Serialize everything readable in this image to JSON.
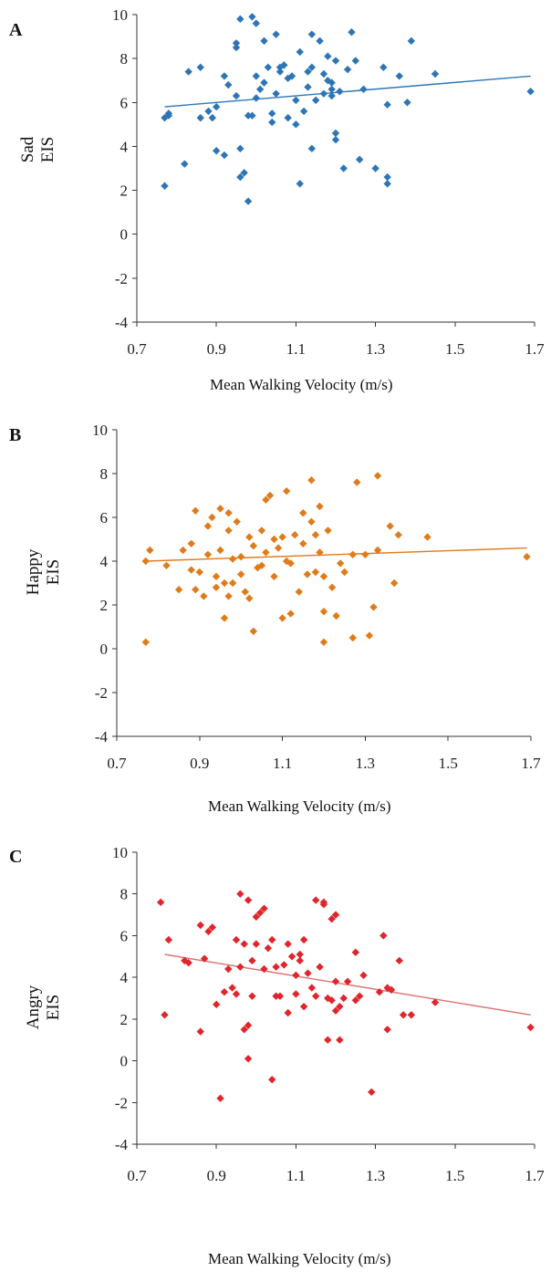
{
  "chart_data": [
    {
      "panel_label": "A",
      "type": "scatter",
      "ylabel": [
        "Sad",
        "EIS"
      ],
      "xlabel": "Mean Walking Velocity (m/s)",
      "xlim": [
        0.7,
        1.7
      ],
      "ylim": [
        -4,
        10
      ],
      "xticks": [
        "0.7",
        "0.9",
        "1.1",
        "1.3",
        "1.5",
        "1.7"
      ],
      "yticks": [
        "10",
        "8",
        "6",
        "4",
        "2",
        "0",
        "-2",
        "-4"
      ],
      "marker_color": "#2e75b6",
      "trend_color": "#2e75b6",
      "trend": {
        "x": [
          0.77,
          1.69
        ],
        "y": [
          5.8,
          7.2
        ]
      },
      "points": [
        [
          0.77,
          2.2
        ],
        [
          0.77,
          5.3
        ],
        [
          0.78,
          5.5
        ],
        [
          0.78,
          5.4
        ],
        [
          0.82,
          3.2
        ],
        [
          0.83,
          7.4
        ],
        [
          0.86,
          7.6
        ],
        [
          0.86,
          5.3
        ],
        [
          0.88,
          5.6
        ],
        [
          0.89,
          5.3
        ],
        [
          0.9,
          3.8
        ],
        [
          0.9,
          5.8
        ],
        [
          0.92,
          3.6
        ],
        [
          0.92,
          7.2
        ],
        [
          0.93,
          6.8
        ],
        [
          0.95,
          8.7
        ],
        [
          0.95,
          8.5
        ],
        [
          0.95,
          6.3
        ],
        [
          0.96,
          9.8
        ],
        [
          0.96,
          3.9
        ],
        [
          0.96,
          2.6
        ],
        [
          0.97,
          2.8
        ],
        [
          0.98,
          1.5
        ],
        [
          0.98,
          5.4
        ],
        [
          0.99,
          9.9
        ],
        [
          0.99,
          5.4
        ],
        [
          1.0,
          6.2
        ],
        [
          1.0,
          9.6
        ],
        [
          1.0,
          7.2
        ],
        [
          1.01,
          6.6
        ],
        [
          1.02,
          6.9
        ],
        [
          1.02,
          8.8
        ],
        [
          1.03,
          7.6
        ],
        [
          1.04,
          5.5
        ],
        [
          1.04,
          5.1
        ],
        [
          1.05,
          6.4
        ],
        [
          1.05,
          9.1
        ],
        [
          1.06,
          7.6
        ],
        [
          1.06,
          7.4
        ],
        [
          1.07,
          7.7
        ],
        [
          1.08,
          7.1
        ],
        [
          1.08,
          5.3
        ],
        [
          1.09,
          7.2
        ],
        [
          1.1,
          5.0
        ],
        [
          1.1,
          6.1
        ],
        [
          1.11,
          8.3
        ],
        [
          1.11,
          2.3
        ],
        [
          1.12,
          5.6
        ],
        [
          1.13,
          7.4
        ],
        [
          1.13,
          6.7
        ],
        [
          1.14,
          7.6
        ],
        [
          1.14,
          3.9
        ],
        [
          1.14,
          9.1
        ],
        [
          1.15,
          6.1
        ],
        [
          1.16,
          8.8
        ],
        [
          1.17,
          7.3
        ],
        [
          1.17,
          6.4
        ],
        [
          1.18,
          7.0
        ],
        [
          1.18,
          8.1
        ],
        [
          1.19,
          6.6
        ],
        [
          1.19,
          6.3
        ],
        [
          1.19,
          6.9
        ],
        [
          1.2,
          4.6
        ],
        [
          1.2,
          4.3
        ],
        [
          1.2,
          7.9
        ],
        [
          1.21,
          6.5
        ],
        [
          1.22,
          3.0
        ],
        [
          1.23,
          7.5
        ],
        [
          1.24,
          9.2
        ],
        [
          1.25,
          7.9
        ],
        [
          1.26,
          3.4
        ],
        [
          1.27,
          6.6
        ],
        [
          1.3,
          3.0
        ],
        [
          1.32,
          7.6
        ],
        [
          1.33,
          2.6
        ],
        [
          1.33,
          2.3
        ],
        [
          1.33,
          5.9
        ],
        [
          1.36,
          7.2
        ],
        [
          1.38,
          6.0
        ],
        [
          1.39,
          8.8
        ],
        [
          1.45,
          7.3
        ],
        [
          1.69,
          6.5
        ]
      ]
    },
    {
      "panel_label": "B",
      "type": "scatter",
      "ylabel": [
        "Happy",
        "EIS"
      ],
      "xlabel": "Mean Walking Velocity (m/s)",
      "xlim": [
        0.7,
        1.7
      ],
      "ylim": [
        -4,
        10
      ],
      "xticks": [
        "0.7",
        "0.9",
        "1.1",
        "1.3",
        "1.5",
        "1.7"
      ],
      "yticks": [
        "10",
        "8",
        "6",
        "4",
        "2",
        "0",
        "-2",
        "-4"
      ],
      "marker_color": "#e07b1a",
      "trend_color": "#e07b1a",
      "trend": {
        "x": [
          0.77,
          1.69
        ],
        "y": [
          4.0,
          4.6
        ]
      },
      "points": [
        [
          0.77,
          0.3
        ],
        [
          0.77,
          4.0
        ],
        [
          0.78,
          4.5
        ],
        [
          0.82,
          3.8
        ],
        [
          0.85,
          2.7
        ],
        [
          0.86,
          4.5
        ],
        [
          0.88,
          3.6
        ],
        [
          0.88,
          4.8
        ],
        [
          0.89,
          6.3
        ],
        [
          0.89,
          2.7
        ],
        [
          0.9,
          3.5
        ],
        [
          0.91,
          2.4
        ],
        [
          0.92,
          4.3
        ],
        [
          0.92,
          5.6
        ],
        [
          0.93,
          6.0
        ],
        [
          0.94,
          3.3
        ],
        [
          0.94,
          2.8
        ],
        [
          0.95,
          6.4
        ],
        [
          0.95,
          4.5
        ],
        [
          0.96,
          1.4
        ],
        [
          0.96,
          3.0
        ],
        [
          0.97,
          6.2
        ],
        [
          0.97,
          5.4
        ],
        [
          0.97,
          2.4
        ],
        [
          0.98,
          4.1
        ],
        [
          0.98,
          3.0
        ],
        [
          0.99,
          5.8
        ],
        [
          1.0,
          4.2
        ],
        [
          1.0,
          3.4
        ],
        [
          1.01,
          2.6
        ],
        [
          1.02,
          5.1
        ],
        [
          1.02,
          2.3
        ],
        [
          1.03,
          0.8
        ],
        [
          1.03,
          4.7
        ],
        [
          1.04,
          3.7
        ],
        [
          1.05,
          5.4
        ],
        [
          1.05,
          3.8
        ],
        [
          1.06,
          6.8
        ],
        [
          1.06,
          4.4
        ],
        [
          1.07,
          7.0
        ],
        [
          1.08,
          5.0
        ],
        [
          1.08,
          3.3
        ],
        [
          1.09,
          4.6
        ],
        [
          1.1,
          1.4
        ],
        [
          1.1,
          5.1
        ],
        [
          1.11,
          7.2
        ],
        [
          1.11,
          4.0
        ],
        [
          1.12,
          1.6
        ],
        [
          1.12,
          3.9
        ],
        [
          1.13,
          5.2
        ],
        [
          1.14,
          2.6
        ],
        [
          1.15,
          6.2
        ],
        [
          1.15,
          4.8
        ],
        [
          1.16,
          3.4
        ],
        [
          1.17,
          7.7
        ],
        [
          1.17,
          5.8
        ],
        [
          1.18,
          3.5
        ],
        [
          1.18,
          5.2
        ],
        [
          1.19,
          6.5
        ],
        [
          1.19,
          4.4
        ],
        [
          1.2,
          0.3
        ],
        [
          1.2,
          1.7
        ],
        [
          1.2,
          3.3
        ],
        [
          1.21,
          5.4
        ],
        [
          1.22,
          2.8
        ],
        [
          1.23,
          1.5
        ],
        [
          1.24,
          3.9
        ],
        [
          1.25,
          3.5
        ],
        [
          1.27,
          0.5
        ],
        [
          1.27,
          4.3
        ],
        [
          1.28,
          7.6
        ],
        [
          1.3,
          4.3
        ],
        [
          1.31,
          0.6
        ],
        [
          1.32,
          1.9
        ],
        [
          1.33,
          7.9
        ],
        [
          1.33,
          4.5
        ],
        [
          1.36,
          5.6
        ],
        [
          1.37,
          3.0
        ],
        [
          1.38,
          5.2
        ],
        [
          1.45,
          5.1
        ],
        [
          1.69,
          4.2
        ]
      ]
    },
    {
      "panel_label": "C",
      "type": "scatter",
      "ylabel": [
        "Angry",
        "EIS"
      ],
      "xlabel": "Mean Walking Velocity (m/s)",
      "xlim": [
        0.7,
        1.7
      ],
      "ylim": [
        -4,
        10
      ],
      "xticks": [
        "0.7",
        "0.9",
        "1.1",
        "1.3",
        "1.5",
        "1.7"
      ],
      "yticks": [
        "10",
        "8",
        "6",
        "4",
        "2",
        "0",
        "-2",
        "-4"
      ],
      "marker_color": "#e0252b",
      "trend_color": "#e07070",
      "trend": {
        "x": [
          0.77,
          1.69
        ],
        "y": [
          5.1,
          2.2
        ]
      },
      "points": [
        [
          0.76,
          7.6
        ],
        [
          0.77,
          2.2
        ],
        [
          0.78,
          5.8
        ],
        [
          0.82,
          4.8
        ],
        [
          0.83,
          4.7
        ],
        [
          0.86,
          1.4
        ],
        [
          0.86,
          6.5
        ],
        [
          0.87,
          4.9
        ],
        [
          0.88,
          6.2
        ],
        [
          0.89,
          6.4
        ],
        [
          0.9,
          2.7
        ],
        [
          0.91,
          -1.8
        ],
        [
          0.92,
          3.3
        ],
        [
          0.93,
          4.4
        ],
        [
          0.94,
          3.5
        ],
        [
          0.95,
          3.2
        ],
        [
          0.95,
          5.8
        ],
        [
          0.96,
          4.5
        ],
        [
          0.96,
          8.0
        ],
        [
          0.97,
          1.5
        ],
        [
          0.97,
          5.6
        ],
        [
          0.98,
          1.7
        ],
        [
          0.98,
          0.1
        ],
        [
          0.98,
          7.7
        ],
        [
          0.99,
          4.8
        ],
        [
          0.99,
          3.1
        ],
        [
          1.0,
          6.9
        ],
        [
          1.0,
          5.6
        ],
        [
          1.01,
          7.1
        ],
        [
          1.02,
          4.4
        ],
        [
          1.02,
          7.3
        ],
        [
          1.03,
          5.4
        ],
        [
          1.04,
          5.8
        ],
        [
          1.04,
          -0.9
        ],
        [
          1.05,
          3.1
        ],
        [
          1.05,
          4.5
        ],
        [
          1.06,
          3.1
        ],
        [
          1.07,
          4.6
        ],
        [
          1.08,
          5.6
        ],
        [
          1.08,
          2.3
        ],
        [
          1.09,
          5.0
        ],
        [
          1.1,
          3.2
        ],
        [
          1.1,
          4.1
        ],
        [
          1.11,
          4.8
        ],
        [
          1.11,
          5.1
        ],
        [
          1.12,
          2.6
        ],
        [
          1.12,
          5.8
        ],
        [
          1.13,
          4.2
        ],
        [
          1.14,
          3.5
        ],
        [
          1.15,
          7.7
        ],
        [
          1.15,
          3.1
        ],
        [
          1.16,
          4.5
        ],
        [
          1.17,
          7.5
        ],
        [
          1.17,
          7.6
        ],
        [
          1.18,
          3.0
        ],
        [
          1.18,
          1.0
        ],
        [
          1.19,
          6.8
        ],
        [
          1.19,
          2.9
        ],
        [
          1.2,
          2.4
        ],
        [
          1.2,
          7.0
        ],
        [
          1.2,
          3.8
        ],
        [
          1.21,
          1.0
        ],
        [
          1.21,
          2.6
        ],
        [
          1.22,
          3.0
        ],
        [
          1.23,
          3.8
        ],
        [
          1.25,
          5.2
        ],
        [
          1.25,
          2.9
        ],
        [
          1.26,
          3.1
        ],
        [
          1.27,
          4.1
        ],
        [
          1.29,
          -1.5
        ],
        [
          1.31,
          3.3
        ],
        [
          1.32,
          6.0
        ],
        [
          1.33,
          1.5
        ],
        [
          1.33,
          3.5
        ],
        [
          1.34,
          3.4
        ],
        [
          1.36,
          4.8
        ],
        [
          1.37,
          2.2
        ],
        [
          1.39,
          2.2
        ],
        [
          1.45,
          2.8
        ],
        [
          1.69,
          1.6
        ]
      ]
    }
  ]
}
